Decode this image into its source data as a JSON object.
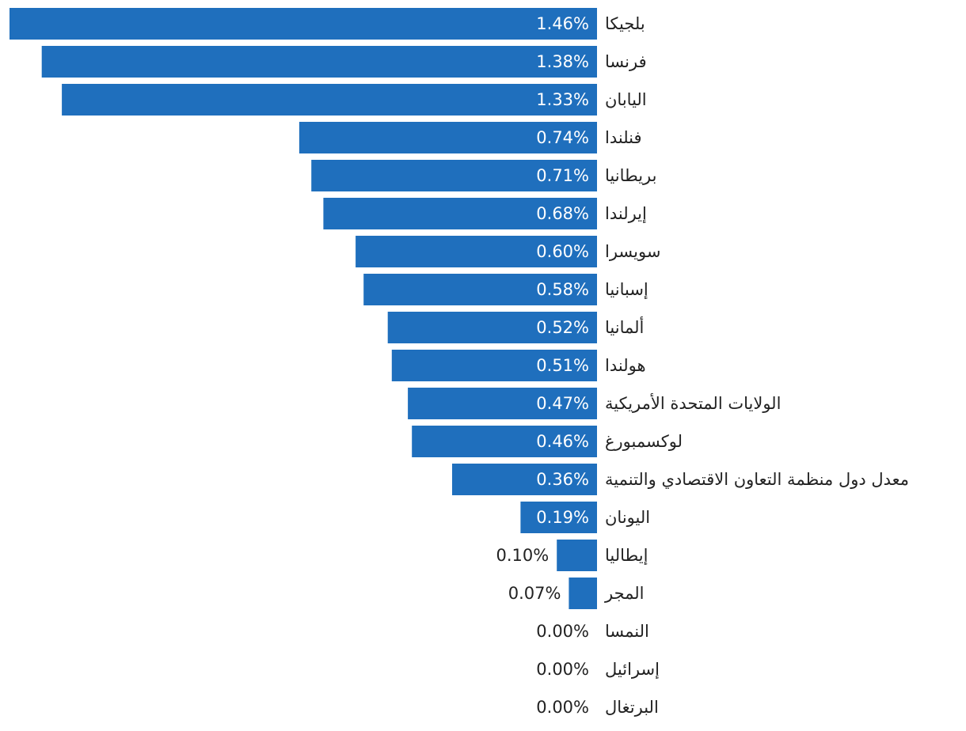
{
  "chart_data": {
    "type": "bar",
    "orientation": "horizontal",
    "bar_color": "#1f6fbd",
    "inside_label_color": "#ffffff",
    "outside_label_color": "#222222",
    "categories": [
      "بلجيكا",
      "فرنسا",
      "اليابان",
      "فنلندا",
      "بريطانيا",
      "إيرلندا",
      "سويسرا",
      "إسبانيا",
      "ألمانيا",
      "هولندا",
      "الولايات المتحدة الأمريكية",
      "لوكسمبورغ",
      "معدل دول منظمة التعاون الاقتصادي والتنمية",
      "اليونان",
      "إيطاليا",
      "المجر",
      "النمسا",
      "إسرائيل",
      "البرتغال"
    ],
    "values": [
      1.46,
      1.38,
      1.33,
      0.74,
      0.71,
      0.68,
      0.6,
      0.58,
      0.52,
      0.51,
      0.47,
      0.46,
      0.36,
      0.19,
      0.1,
      0.07,
      0.0,
      0.0,
      0.0
    ],
    "value_labels": [
      "1.46%",
      "1.38%",
      "1.33%",
      "0.74%",
      "0.71%",
      "0.68%",
      "0.60%",
      "0.58%",
      "0.52%",
      "0.51%",
      "0.47%",
      "0.46%",
      "0.36%",
      "0.19%",
      "0.10%",
      "0.07%",
      "0.00%",
      "0.00%",
      "0.00%"
    ],
    "xlim": [
      0,
      1.46
    ],
    "grid": false,
    "legend": false
  }
}
